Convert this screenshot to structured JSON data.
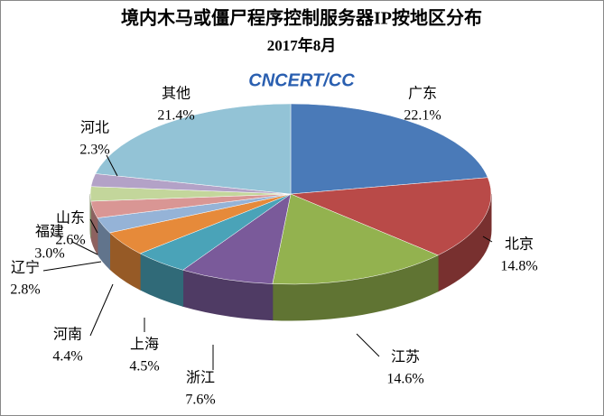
{
  "chart_data": {
    "type": "pie3d",
    "title": "境内木马或僵尸程序控制服务器IP按地区分布",
    "subtitle": "2017年8月",
    "logo": "CNCERT/CC",
    "categories": [
      "广东",
      "北京",
      "江苏",
      "浙江",
      "上海",
      "河南",
      "辽宁",
      "福建",
      "山东",
      "河北",
      "其他"
    ],
    "values": [
      22.1,
      14.8,
      14.6,
      7.6,
      4.5,
      4.4,
      2.8,
      3.0,
      2.6,
      2.3,
      21.4
    ],
    "value_labels": [
      "22.1%",
      "14.8%",
      "14.6%",
      "7.6%",
      "4.5%",
      "4.4%",
      "2.8%",
      "3.0%",
      "2.6%",
      "2.3%",
      "21.4%"
    ],
    "colors": [
      "#4a7ab8",
      "#b94a48",
      "#93b24f",
      "#7a5a9a",
      "#4aa3b8",
      "#e68a3a",
      "#95b3d7",
      "#d99694",
      "#c3d69b",
      "#b3a2c7",
      "#93c3d6"
    ]
  }
}
